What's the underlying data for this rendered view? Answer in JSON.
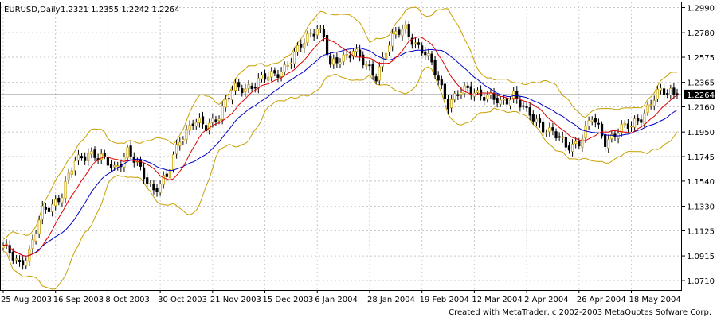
{
  "header": {
    "symbol": "EURUSD,Daily",
    "ohlc": "1.2321 1.2355 1.2242 1.2264"
  },
  "footer": {
    "credit": "Created with MetaTrader, c 2002-2003 MetaQuotes Sofware Corp."
  },
  "colors": {
    "background": "#ffffff",
    "grid": "#c8c8c8",
    "candle": "#c8a000",
    "bands": "#c8a000",
    "ma_fast": "#e00000",
    "ma_slow": "#0000c8",
    "current_price_bg": "#000000",
    "current_price_fg": "#ffffff"
  },
  "chart_data": {
    "type": "candlestick",
    "symbol": "EURUSD",
    "timeframe": "Daily",
    "ylim": [
      1.063,
      1.304
    ],
    "yticks": [
      "1.2990",
      "1.2780",
      "1.2575",
      "1.2365",
      "1.2160",
      "1.1950",
      "1.1745",
      "1.1540",
      "1.1330",
      "1.1125",
      "1.0915",
      "1.0710"
    ],
    "current_price": "1.2264",
    "xticks": [
      {
        "label": "25 Aug 2003",
        "index": 0
      },
      {
        "label": "16 Sep 2003",
        "index": 16
      },
      {
        "label": "8 Oct 2003",
        "index": 32
      },
      {
        "label": "30 Oct 2003",
        "index": 48
      },
      {
        "label": "21 Nov 2003",
        "index": 64
      },
      {
        "label": "15 Dec 2003",
        "index": 80
      },
      {
        "label": "6 Jan 2004",
        "index": 96
      },
      {
        "label": "28 Jan 2004",
        "index": 112
      },
      {
        "label": "19 Feb 2004",
        "index": 128
      },
      {
        "label": "12 Mar 2004",
        "index": 144
      },
      {
        "label": "2 Apr 2004",
        "index": 160
      },
      {
        "label": "26 Apr 2004",
        "index": 176
      },
      {
        "label": "18 May 2004",
        "index": 192
      }
    ],
    "grid": true,
    "series": [
      {
        "indicator": "moving-average-fast"
      },
      {
        "indicator": "moving-average-slow"
      },
      {
        "indicator": "bollinger-bands"
      }
    ],
    "close_anchors": [
      {
        "index": 0,
        "close": 1.098
      },
      {
        "index": 5,
        "close": 1.086
      },
      {
        "index": 8,
        "close": 1.094
      },
      {
        "index": 12,
        "close": 1.128
      },
      {
        "index": 18,
        "close": 1.143
      },
      {
        "index": 22,
        "close": 1.17
      },
      {
        "index": 26,
        "close": 1.179
      },
      {
        "index": 30,
        "close": 1.172
      },
      {
        "index": 34,
        "close": 1.165
      },
      {
        "index": 38,
        "close": 1.179
      },
      {
        "index": 42,
        "close": 1.162
      },
      {
        "index": 46,
        "close": 1.148
      },
      {
        "index": 50,
        "close": 1.156
      },
      {
        "index": 54,
        "close": 1.19
      },
      {
        "index": 58,
        "close": 1.204
      },
      {
        "index": 62,
        "close": 1.198
      },
      {
        "index": 66,
        "close": 1.211
      },
      {
        "index": 70,
        "close": 1.229
      },
      {
        "index": 74,
        "close": 1.232
      },
      {
        "index": 78,
        "close": 1.238
      },
      {
        "index": 82,
        "close": 1.241
      },
      {
        "index": 86,
        "close": 1.25
      },
      {
        "index": 90,
        "close": 1.262
      },
      {
        "index": 94,
        "close": 1.278
      },
      {
        "index": 96,
        "close": 1.284
      },
      {
        "index": 98,
        "close": 1.275
      },
      {
        "index": 100,
        "close": 1.248
      },
      {
        "index": 103,
        "close": 1.256
      },
      {
        "index": 107,
        "close": 1.265
      },
      {
        "index": 111,
        "close": 1.248
      },
      {
        "index": 114,
        "close": 1.242
      },
      {
        "index": 117,
        "close": 1.265
      },
      {
        "index": 120,
        "close": 1.276
      },
      {
        "index": 123,
        "close": 1.281
      },
      {
        "index": 126,
        "close": 1.27
      },
      {
        "index": 129,
        "close": 1.26
      },
      {
        "index": 132,
        "close": 1.245
      },
      {
        "index": 136,
        "close": 1.22
      },
      {
        "index": 140,
        "close": 1.228
      },
      {
        "index": 144,
        "close": 1.23
      },
      {
        "index": 148,
        "close": 1.225
      },
      {
        "index": 152,
        "close": 1.218
      },
      {
        "index": 156,
        "close": 1.228
      },
      {
        "index": 160,
        "close": 1.21
      },
      {
        "index": 164,
        "close": 1.202
      },
      {
        "index": 168,
        "close": 1.195
      },
      {
        "index": 172,
        "close": 1.182
      },
      {
        "index": 176,
        "close": 1.188
      },
      {
        "index": 180,
        "close": 1.206
      },
      {
        "index": 184,
        "close": 1.188
      },
      {
        "index": 188,
        "close": 1.196
      },
      {
        "index": 192,
        "close": 1.2
      },
      {
        "index": 196,
        "close": 1.212
      },
      {
        "index": 200,
        "close": 1.226
      },
      {
        "index": 204,
        "close": 1.23
      },
      {
        "index": 206,
        "close": 1.2264
      }
    ]
  }
}
